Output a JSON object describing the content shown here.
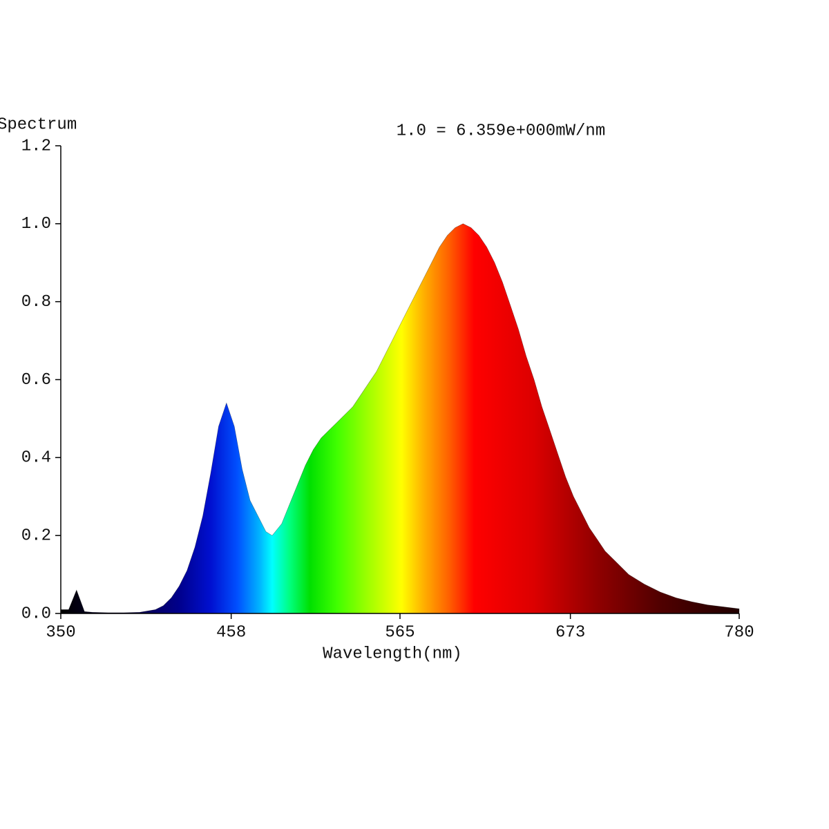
{
  "chart_data": {
    "type": "area",
    "title": "1.0 = 6.359e+000mW/nm",
    "y_label": "Spectrum",
    "x_label": "Wavelength(nm)",
    "x": [
      350,
      355,
      360,
      365,
      370,
      380,
      390,
      400,
      410,
      415,
      420,
      425,
      430,
      435,
      440,
      445,
      450,
      455,
      460,
      465,
      470,
      475,
      480,
      484,
      490,
      495,
      500,
      505,
      510,
      515,
      520,
      525,
      530,
      535,
      540,
      545,
      550,
      555,
      560,
      565,
      570,
      575,
      580,
      585,
      590,
      595,
      600,
      605,
      610,
      615,
      620,
      625,
      630,
      635,
      640,
      645,
      650,
      655,
      660,
      665,
      670,
      675,
      680,
      685,
      690,
      695,
      700,
      710,
      720,
      730,
      740,
      750,
      760,
      770,
      780
    ],
    "values": [
      0.01,
      0.01,
      0.06,
      0.005,
      0.003,
      0.002,
      0.002,
      0.003,
      0.01,
      0.02,
      0.04,
      0.07,
      0.11,
      0.17,
      0.25,
      0.36,
      0.48,
      0.54,
      0.48,
      0.37,
      0.29,
      0.25,
      0.21,
      0.2,
      0.23,
      0.28,
      0.33,
      0.38,
      0.42,
      0.45,
      0.47,
      0.49,
      0.51,
      0.53,
      0.56,
      0.59,
      0.62,
      0.66,
      0.7,
      0.74,
      0.78,
      0.82,
      0.86,
      0.9,
      0.94,
      0.97,
      0.99,
      1.0,
      0.99,
      0.97,
      0.94,
      0.9,
      0.85,
      0.79,
      0.73,
      0.66,
      0.6,
      0.53,
      0.47,
      0.41,
      0.35,
      0.3,
      0.26,
      0.22,
      0.19,
      0.16,
      0.14,
      0.1,
      0.075,
      0.055,
      0.04,
      0.03,
      0.022,
      0.017,
      0.012
    ],
    "xlim": [
      350,
      780
    ],
    "xticks": [
      350,
      458,
      565,
      673,
      780
    ],
    "ylim": [
      0,
      1.2
    ],
    "yticks": [
      {
        "value": 0,
        "label": "0.0"
      },
      0.2,
      0.4,
      0.6,
      0.8,
      {
        "value": 1,
        "label": "1.0"
      },
      1.2
    ],
    "fill": "spectral",
    "line_color": "#000000"
  }
}
